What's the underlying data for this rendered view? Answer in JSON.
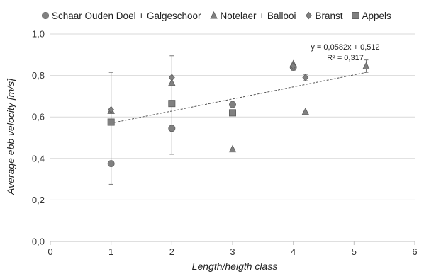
{
  "chart_data": {
    "type": "scatter",
    "xlabel": "Length/heigth class",
    "ylabel": "Average ebb velocity  [m/s]",
    "xlim": [
      0,
      6
    ],
    "ylim": [
      0,
      1.0
    ],
    "x_ticks": [
      "0",
      "1",
      "2",
      "3",
      "4",
      "5",
      "6"
    ],
    "y_ticks": [
      "0,0",
      "0,2",
      "0,4",
      "0,6",
      "0,8",
      "1,0"
    ],
    "grid": "horizontal",
    "legend_position": "top",
    "series": [
      {
        "name": "Schaar Ouden Doel + Galgeschoor",
        "marker": "circle",
        "color": "#808080",
        "points": [
          {
            "x": 1,
            "y": 0.375
          },
          {
            "x": 2,
            "y": 0.545
          },
          {
            "x": 3,
            "y": 0.66
          },
          {
            "x": 4,
            "y": 0.84
          }
        ]
      },
      {
        "name": "Notelaer + Ballooi",
        "marker": "triangle",
        "color": "#808080",
        "points": [
          {
            "x": 1,
            "y": 0.63
          },
          {
            "x": 2,
            "y": 0.765
          },
          {
            "x": 3,
            "y": 0.445
          },
          {
            "x": 4,
            "y": 0.855
          },
          {
            "x": 4.2,
            "y": 0.625
          },
          {
            "x": 5.2,
            "y": 0.845
          }
        ]
      },
      {
        "name": "Branst",
        "marker": "diamond",
        "color": "#808080",
        "points": [
          {
            "x": 1,
            "y": 0.635
          },
          {
            "x": 2,
            "y": 0.79
          },
          {
            "x": 4,
            "y": 0.845
          },
          {
            "x": 4.2,
            "y": 0.79
          }
        ]
      },
      {
        "name": "Appels",
        "marker": "square",
        "color": "#808080",
        "points": [
          {
            "x": 1,
            "y": 0.575
          },
          {
            "x": 2,
            "y": 0.665
          },
          {
            "x": 3,
            "y": 0.62
          }
        ]
      }
    ],
    "error_bars": [
      {
        "x": 1,
        "low": 0.275,
        "high": 0.815
      },
      {
        "x": 2,
        "low": 0.42,
        "high": 0.895
      },
      {
        "x": 4,
        "low": 0.825,
        "high": 0.865
      },
      {
        "x": 4.2,
        "low": 0.775,
        "high": 0.805
      },
      {
        "x": 5.2,
        "low": 0.815,
        "high": 0.875
      }
    ],
    "trendline": {
      "slope": 0.0582,
      "intercept": 0.512,
      "x_range": [
        1,
        5.2
      ],
      "equation": "y = 0,0582x + 0,512",
      "r_squared": "R² = 0,317"
    }
  }
}
